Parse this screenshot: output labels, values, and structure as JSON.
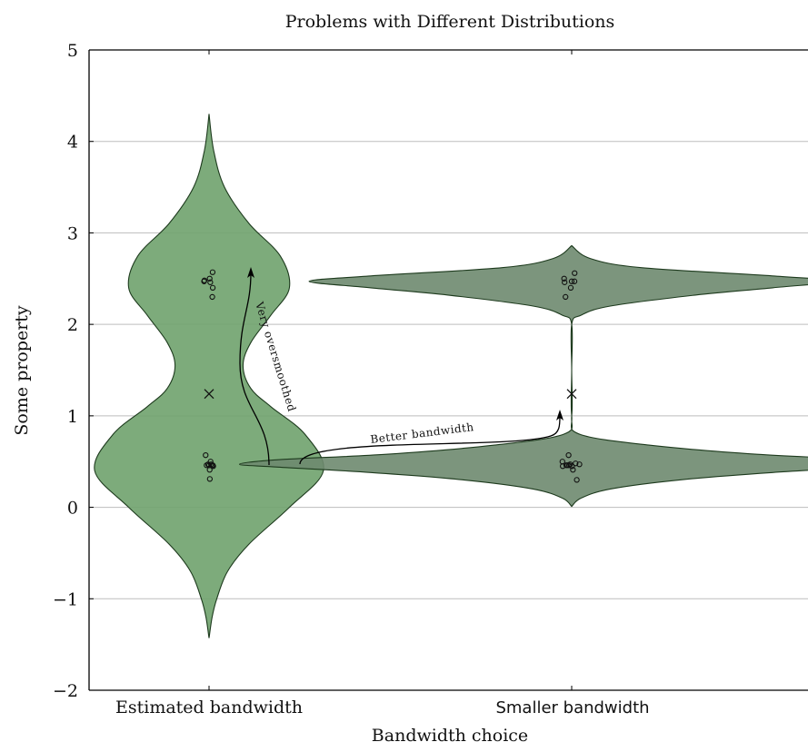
{
  "chart_data": {
    "type": "violin",
    "title": "Problems with Different Distributions",
    "xlabel": "Bandwidth choice",
    "ylabel": "Some property",
    "ylim": [
      -2,
      5
    ],
    "yticks": [
      "−2",
      "−1",
      "0",
      "1",
      "2",
      "3",
      "4",
      "5"
    ],
    "ytick_values": [
      -2,
      -1,
      0,
      1,
      2,
      3,
      4,
      5
    ],
    "grid": true,
    "categories": [
      "Estimated bandwidth",
      "Smaller bandwidth"
    ],
    "violins": [
      {
        "category": "Estimated bandwidth",
        "color": "#6fa26d",
        "mean": 1.24,
        "density_y": [
          -1.43,
          -1.2,
          -1.0,
          -0.7,
          -0.4,
          0.0,
          0.4,
          0.8,
          1.1,
          1.3,
          1.55,
          1.8,
          2.1,
          2.4,
          2.75,
          3.1,
          3.5,
          3.9,
          4.3
        ],
        "density_width": [
          0.0,
          0.02,
          0.05,
          0.12,
          0.26,
          0.52,
          0.74,
          0.62,
          0.4,
          0.27,
          0.22,
          0.27,
          0.4,
          0.52,
          0.46,
          0.26,
          0.1,
          0.03,
          0.0
        ],
        "points": [
          {
            "offset": -0.32,
            "y": 2.47
          },
          {
            "offset": -0.3,
            "y": 2.48
          },
          {
            "offset": 0.04,
            "y": 2.5
          },
          {
            "offset": 0.08,
            "y": 2.46
          },
          {
            "offset": 0.23,
            "y": 2.57
          },
          {
            "offset": 0.24,
            "y": 2.4
          },
          {
            "offset": 0.21,
            "y": 2.3
          },
          {
            "offset": -0.22,
            "y": 0.57
          },
          {
            "offset": -0.16,
            "y": 0.46
          },
          {
            "offset": -0.06,
            "y": 0.47
          },
          {
            "offset": 0.01,
            "y": 0.46
          },
          {
            "offset": 0.04,
            "y": 0.41
          },
          {
            "offset": 0.1,
            "y": 0.5
          },
          {
            "offset": 0.14,
            "y": 0.47
          },
          {
            "offset": 0.2,
            "y": 0.46
          },
          {
            "offset": 0.24,
            "y": 0.46
          },
          {
            "offset": 0.27,
            "y": 0.45
          },
          {
            "offset": 0.05,
            "y": 0.31
          }
        ]
      },
      {
        "category": "Smaller bandwidth",
        "color": "#6e8a6f",
        "mean": 1.24,
        "density_y": [
          0.01,
          0.1,
          0.2,
          0.3,
          0.38,
          0.44,
          0.47,
          0.52,
          0.58,
          0.68,
          0.8,
          1.0,
          1.5,
          2.0,
          2.1,
          2.2,
          2.32,
          2.4,
          2.47,
          2.53,
          2.62,
          2.72,
          2.86
        ],
        "density_width": [
          0.0,
          0.06,
          0.25,
          0.7,
          1.3,
          1.9,
          2.15,
          1.9,
          1.2,
          0.5,
          0.05,
          0.0,
          0.0,
          0.0,
          0.06,
          0.25,
          0.8,
          1.3,
          1.7,
          1.3,
          0.45,
          0.12,
          0.0
        ],
        "points": [
          {
            "offset": -0.6,
            "y": 0.5
          },
          {
            "offset": -0.58,
            "y": 0.45
          },
          {
            "offset": -0.35,
            "y": 0.46
          },
          {
            "offset": -0.27,
            "y": 0.46
          },
          {
            "offset": -0.2,
            "y": 0.57
          },
          {
            "offset": -0.17,
            "y": 0.46
          },
          {
            "offset": -0.1,
            "y": 0.47
          },
          {
            "offset": 0.02,
            "y": 0.45
          },
          {
            "offset": 0.08,
            "y": 0.41
          },
          {
            "offset": 0.25,
            "y": 0.48
          },
          {
            "offset": 0.33,
            "y": 0.3
          },
          {
            "offset": 0.5,
            "y": 0.47
          },
          {
            "offset": -0.49,
            "y": 2.5
          },
          {
            "offset": -0.46,
            "y": 2.46
          },
          {
            "offset": -0.4,
            "y": 2.3
          },
          {
            "offset": -0.06,
            "y": 2.4
          },
          {
            "offset": 0.0,
            "y": 2.47
          },
          {
            "offset": 0.18,
            "y": 2.47
          },
          {
            "offset": 0.19,
            "y": 2.56
          }
        ]
      }
    ],
    "annotations": [
      {
        "text": "Very oversmoothed"
      },
      {
        "text": "Better bandwidth"
      }
    ]
  }
}
